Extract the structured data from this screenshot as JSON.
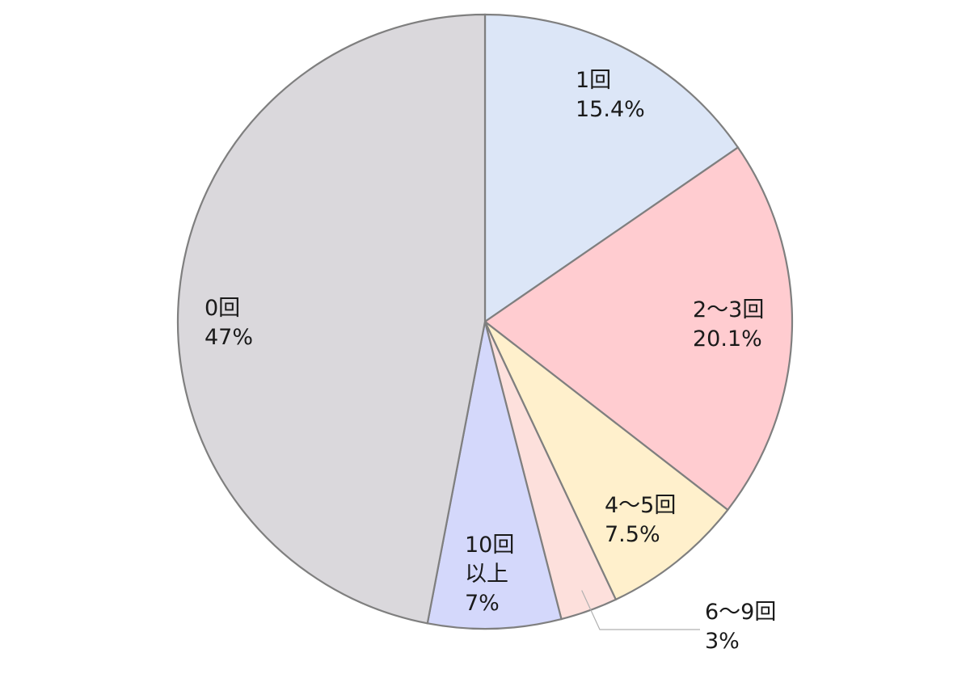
{
  "chart_data": {
    "type": "pie",
    "title": "",
    "start_angle_deg": 0,
    "direction": "clockwise",
    "slices": [
      {
        "label": "1回",
        "value": 15.4,
        "value_text": "15.4%",
        "color": "#dce6f7"
      },
      {
        "label": "2～3回",
        "value": 20.1,
        "value_text": "20.1%",
        "color": "#ffccd0"
      },
      {
        "label": "4～5回",
        "value": 7.5,
        "value_text": "7.5%",
        "color": "#fff0cc"
      },
      {
        "label": "6～9回",
        "value": 3,
        "value_text": "3%",
        "color": "#fde0dc"
      },
      {
        "label": "10回以上",
        "label_lines": [
          "10回",
          "以上"
        ],
        "value": 7,
        "value_text": "7%",
        "color": "#d4d8fb"
      },
      {
        "label": "0回",
        "value": 47,
        "value_text": "47%",
        "color": "#dad8dc"
      }
    ],
    "colors": {
      "slice_border": "#7f7f7f",
      "leader_line": "#b0b0b0",
      "label_text": "#1a1a1a"
    }
  }
}
